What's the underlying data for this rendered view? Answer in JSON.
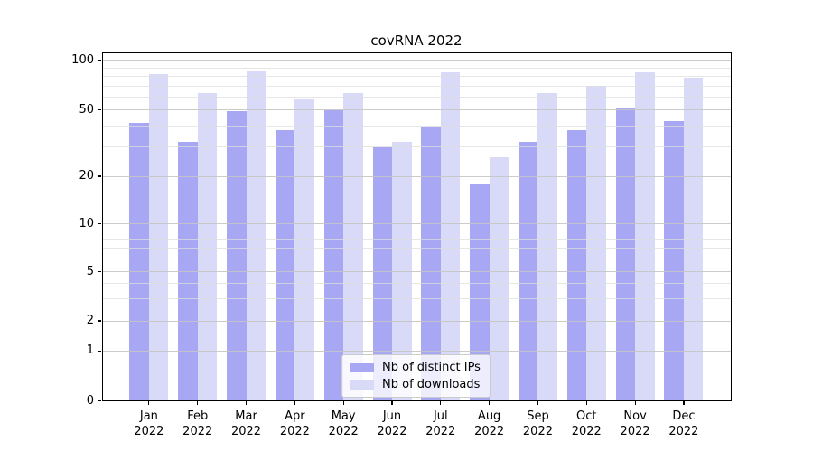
{
  "figure_title": "covRNA 2022",
  "chart_data": {
    "type": "bar",
    "title": "covRNA 2022",
    "categories": [
      "Jan 2022",
      "Feb 2022",
      "Mar 2022",
      "Apr 2022",
      "May 2022",
      "Jun 2022",
      "Jul 2022",
      "Aug 2022",
      "Sep 2022",
      "Oct 2022",
      "Nov 2022",
      "Dec 2022"
    ],
    "series": [
      {
        "name": "Nb of distinct IPs",
        "color": "#a7a7f3",
        "values": [
          42,
          32,
          49,
          38,
          50,
          30,
          40,
          18,
          32,
          38,
          51,
          43
        ]
      },
      {
        "name": "Nb of downloads",
        "color": "#d9d9f8",
        "values": [
          82,
          63,
          87,
          58,
          63,
          32,
          85,
          26,
          63,
          70,
          85,
          78
        ]
      }
    ],
    "yscale": "symlog",
    "ytick_values": [
      0,
      1,
      2,
      5,
      10,
      20,
      50,
      100
    ],
    "ytick_labels": [
      "0",
      "1",
      "2",
      "5",
      "10",
      "20",
      "50",
      "100"
    ],
    "minor_grid_values": [
      3,
      4,
      6,
      7,
      8,
      9,
      30,
      40,
      60,
      70,
      80,
      90
    ],
    "ylim": [
      0,
      111
    ],
    "xlabel": "",
    "ylabel": "",
    "grid": true,
    "legend_position": "lower center"
  },
  "colors": {
    "bar_distinct_ips": "#a7a7f3",
    "bar_downloads": "#d9d9f8",
    "grid_major": "#c5c5c5",
    "grid_minor": "#dedede",
    "spine": "#000000",
    "text": "#000000",
    "legend_border": "#cbcbcb"
  }
}
